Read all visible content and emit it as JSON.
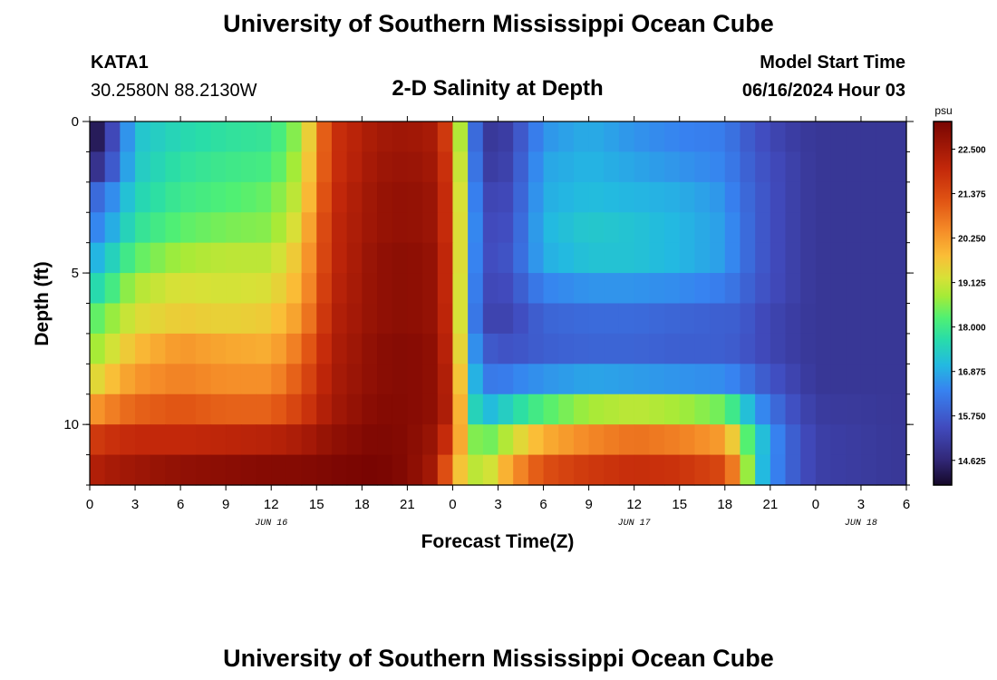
{
  "header": {
    "title": "University of Southern Mississippi Ocean Cube",
    "station_id": "KATA1",
    "station_coords": "30.2580N  88.2130W",
    "plot_title": "2-D Salinity at Depth",
    "model_start_label": "Model Start Time",
    "model_start_value": "06/16/2024 Hour 03"
  },
  "footer": {
    "title": "University of Southern Mississippi Ocean Cube"
  },
  "chart_data": {
    "type": "heatmap",
    "title": "2-D Salinity at Depth",
    "xlabel": "Forecast Time(Z)",
    "ylabel": "Depth (ft)",
    "x_range_hours": [
      0,
      54
    ],
    "y_range_ft": [
      0,
      12
    ],
    "x_tick_labels": [
      "0",
      "3",
      "6",
      "9",
      "12",
      "15",
      "18",
      "21",
      "0",
      "3",
      "6",
      "9",
      "12",
      "15",
      "18",
      "21",
      "0",
      "3",
      "6"
    ],
    "x_tick_hours": [
      0,
      3,
      6,
      9,
      12,
      15,
      18,
      21,
      24,
      27,
      30,
      33,
      36,
      39,
      42,
      45,
      48,
      51,
      54
    ],
    "y_tick_labels": [
      "0",
      "5",
      "10"
    ],
    "y_tick_values": [
      0,
      5,
      10
    ],
    "date_labels": [
      {
        "text": "JUN 16",
        "hour": 12
      },
      {
        "text": "JUN 17",
        "hour": 36
      },
      {
        "text": "JUN 18",
        "hour": 51
      }
    ],
    "colorbar": {
      "unit": "psu",
      "min": 14.0,
      "max": 23.2,
      "tick_labels": [
        "22.500",
        "21.375",
        "20.250",
        "19.125",
        "18.000",
        "16.875",
        "15.750",
        "14.625"
      ],
      "tick_values": [
        22.5,
        21.375,
        20.25,
        19.125,
        18.0,
        16.875,
        15.75,
        14.625
      ]
    },
    "depth_levels_ft": [
      0.5,
      1.5,
      2.5,
      3.5,
      4.5,
      5.5,
      6.5,
      7.5,
      8.5,
      9.5,
      10.5,
      11.5
    ],
    "keyframe_hours": [
      0,
      1,
      3,
      6,
      9,
      12,
      14,
      16,
      19,
      21,
      23,
      24,
      25,
      26,
      27,
      28,
      30,
      33,
      36,
      39,
      42,
      43,
      44,
      46,
      48,
      54
    ],
    "salinity_rows": [
      [
        14.0,
        14.8,
        17.2,
        17.6,
        17.8,
        17.9,
        18.8,
        21.8,
        22.5,
        22.6,
        22.4,
        21.0,
        16.8,
        15.2,
        14.9,
        15.4,
        16.6,
        16.9,
        16.6,
        16.4,
        16.3,
        15.9,
        15.6,
        15.2,
        15.0,
        15.0
      ],
      [
        14.6,
        15.2,
        17.3,
        17.8,
        18.0,
        18.1,
        19.0,
        21.8,
        22.6,
        22.7,
        22.5,
        21.2,
        17.0,
        15.3,
        15.0,
        15.5,
        16.8,
        17.0,
        16.8,
        16.6,
        16.4,
        16.0,
        15.7,
        15.3,
        15.0,
        15.0
      ],
      [
        15.8,
        16.2,
        17.5,
        18.0,
        18.2,
        18.4,
        19.2,
        21.9,
        22.7,
        22.8,
        22.6,
        21.3,
        17.2,
        15.5,
        15.2,
        15.6,
        16.9,
        17.1,
        17.0,
        16.9,
        16.6,
        16.1,
        15.8,
        15.3,
        15.0,
        15.0
      ],
      [
        16.3,
        16.6,
        17.8,
        18.3,
        18.5,
        18.6,
        19.5,
        22.0,
        22.7,
        22.8,
        22.6,
        21.3,
        17.3,
        15.6,
        15.3,
        15.7,
        17.0,
        17.3,
        17.2,
        17.0,
        16.7,
        16.2,
        15.8,
        15.3,
        15.0,
        15.0
      ],
      [
        16.8,
        17.2,
        18.3,
        18.8,
        19.0,
        19.0,
        19.8,
        22.0,
        22.8,
        22.9,
        22.7,
        21.4,
        17.2,
        15.6,
        15.4,
        15.8,
        16.9,
        17.2,
        17.2,
        17.0,
        16.7,
        16.2,
        15.8,
        15.3,
        15.0,
        15.0
      ],
      [
        17.5,
        17.8,
        18.9,
        19.3,
        19.2,
        19.3,
        20.0,
        22.1,
        22.8,
        22.9,
        22.7,
        21.4,
        17.1,
        15.5,
        15.3,
        15.6,
        16.4,
        16.6,
        16.6,
        16.5,
        16.3,
        16.0,
        15.7,
        15.3,
        15.0,
        15.0
      ],
      [
        18.2,
        18.5,
        19.3,
        19.6,
        19.5,
        19.6,
        20.3,
        22.2,
        22.8,
        22.9,
        22.7,
        21.5,
        17.0,
        15.4,
        15.2,
        15.4,
        15.9,
        16.0,
        16.0,
        15.9,
        15.8,
        15.8,
        15.5,
        15.2,
        15.0,
        15.0
      ],
      [
        18.6,
        19.0,
        19.8,
        20.3,
        20.1,
        20.0,
        20.8,
        22.3,
        22.9,
        23.0,
        22.8,
        21.6,
        17.3,
        15.8,
        15.6,
        15.6,
        15.8,
        15.9,
        15.9,
        15.8,
        15.8,
        15.7,
        15.5,
        15.2,
        15.0,
        15.0
      ],
      [
        19.2,
        19.6,
        20.3,
        20.6,
        20.4,
        20.4,
        21.2,
        22.4,
        22.9,
        23.0,
        22.8,
        21.8,
        17.6,
        16.3,
        16.2,
        16.4,
        16.6,
        16.8,
        16.7,
        16.6,
        16.5,
        16.3,
        15.9,
        15.4,
        15.0,
        15.0
      ],
      [
        20.2,
        20.5,
        21.0,
        21.2,
        21.0,
        21.0,
        21.6,
        22.5,
        23.0,
        23.0,
        22.8,
        21.9,
        18.0,
        17.0,
        17.2,
        17.6,
        18.2,
        18.8,
        19.0,
        18.8,
        18.4,
        17.6,
        16.7,
        15.7,
        15.1,
        15.0
      ],
      [
        21.6,
        21.8,
        22.0,
        22.0,
        22.1,
        22.2,
        22.4,
        22.8,
        23.1,
        23.0,
        22.6,
        21.3,
        18.8,
        18.3,
        18.6,
        19.2,
        20.0,
        20.5,
        20.8,
        20.6,
        20.2,
        19.0,
        17.5,
        16.0,
        15.2,
        15.0
      ],
      [
        22.2,
        22.4,
        22.6,
        22.8,
        22.9,
        23.0,
        23.0,
        23.1,
        23.2,
        23.0,
        22.4,
        20.2,
        19.2,
        18.8,
        19.6,
        20.3,
        21.3,
        21.7,
        21.9,
        21.8,
        21.4,
        20.0,
        17.4,
        16.0,
        15.2,
        15.0
      ]
    ]
  }
}
